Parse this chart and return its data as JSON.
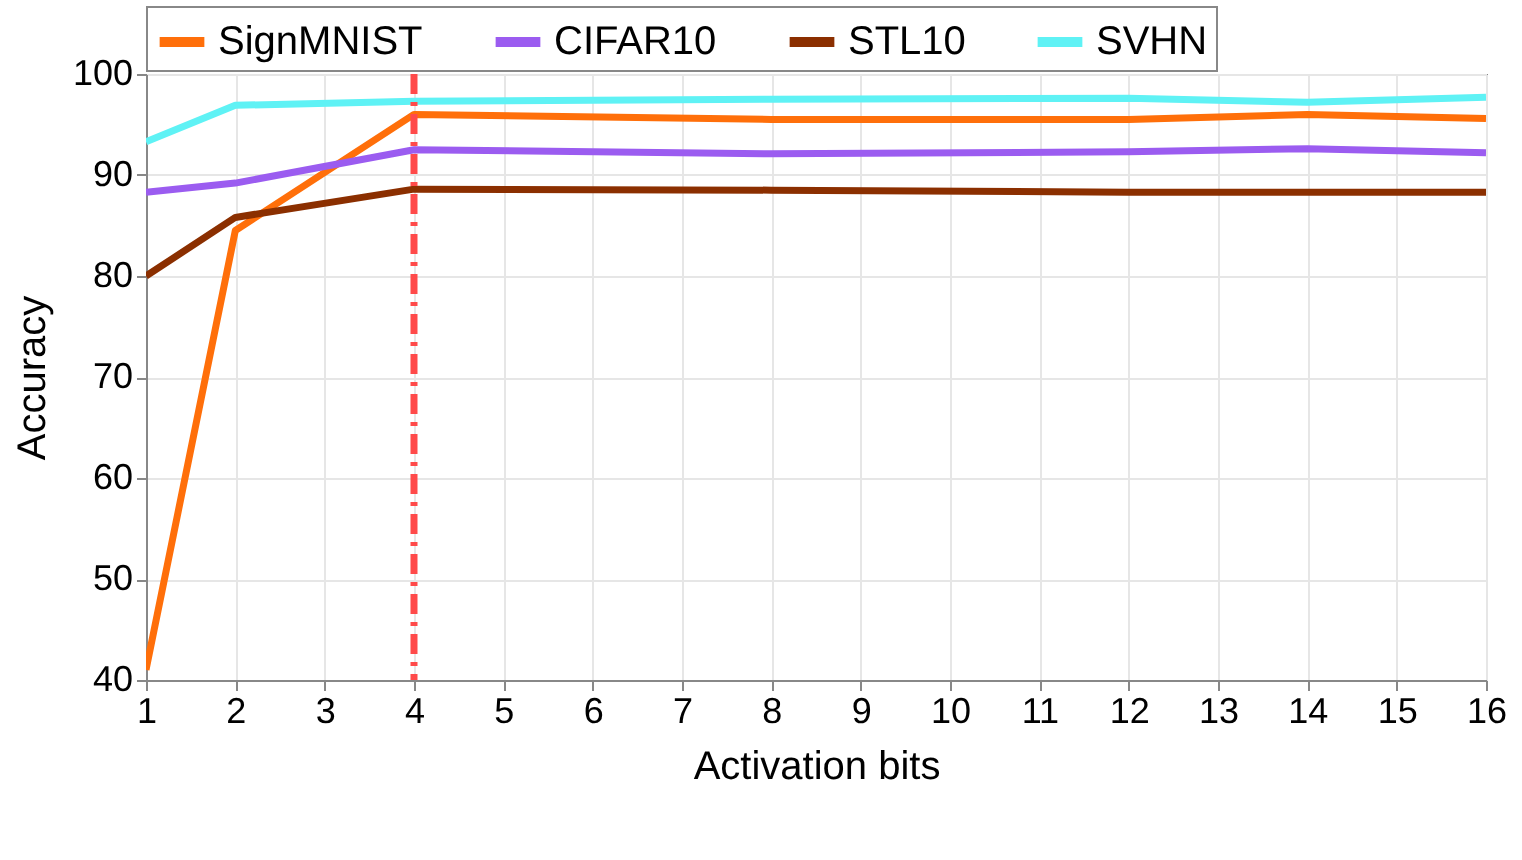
{
  "chart_data": {
    "type": "line",
    "xlabel": "Activation bits",
    "ylabel": "Accuracy",
    "x": [
      1,
      2,
      4,
      8,
      12,
      14,
      16
    ],
    "series": [
      {
        "name": "SignMNIST",
        "color": "#ff6f0a",
        "values": [
          41,
          84.5,
          96,
          95.5,
          95.5,
          96,
          95.6
        ]
      },
      {
        "name": "CIFAR10",
        "color": "#9b5cf0",
        "values": [
          88.3,
          89.2,
          92.5,
          92.1,
          92.3,
          92.6,
          92.2
        ]
      },
      {
        "name": "STL10",
        "color": "#8b2f00",
        "values": [
          80,
          85.8,
          88.6,
          88.5,
          88.3,
          88.3,
          88.3
        ]
      },
      {
        "name": "SVHN",
        "color": "#5ff2f5",
        "values": [
          93.3,
          96.9,
          97.3,
          97.5,
          97.6,
          97.2,
          97.7
        ]
      }
    ],
    "xlim": [
      1,
      16
    ],
    "xticks": [
      1,
      2,
      3,
      4,
      5,
      6,
      7,
      8,
      9,
      10,
      11,
      12,
      13,
      14,
      15,
      16
    ],
    "ylim": [
      40,
      100
    ],
    "yticks": [
      40,
      50,
      60,
      70,
      80,
      90,
      100
    ],
    "ref_lines": [
      {
        "axis": "x",
        "value": 4,
        "color": "#ff4a4a",
        "line_style": "dashdot"
      }
    ],
    "grid": true,
    "legend": "top",
    "marker": "none",
    "line_style": "solid"
  }
}
